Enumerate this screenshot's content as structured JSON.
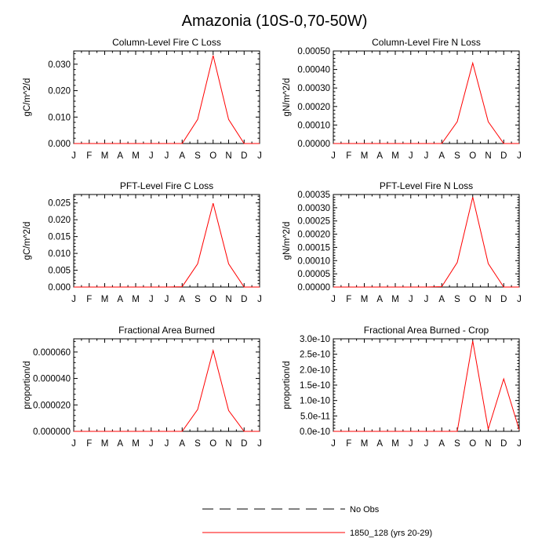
{
  "page_title": "Amazonia (10S-0,70-50W)",
  "colors": {
    "series": "#ff0000",
    "obs": "#000000"
  },
  "legend": {
    "obs_label": "No Obs",
    "model_label": "1850_128 (yrs 20-29)"
  },
  "chart_data": [
    {
      "type": "line",
      "title": "Column-Level Fire C Loss",
      "ylabel": "gC/m^2/d",
      "ylim": [
        0,
        0.035
      ],
      "ytick_values": [
        0,
        0.01,
        0.02,
        0.03
      ],
      "ytick_labels": [
        "0.000",
        "0.010",
        "0.020",
        "0.030"
      ],
      "categories": [
        "J",
        "F",
        "M",
        "A",
        "M",
        "J",
        "J",
        "A",
        "S",
        "O",
        "N",
        "D",
        "J"
      ],
      "series": [
        {
          "name": "1850_128 (yrs 20-29)",
          "values": [
            0,
            0,
            0,
            0,
            0,
            0,
            0,
            0,
            0.0091,
            0.0333,
            0.0091,
            0,
            0
          ]
        }
      ]
    },
    {
      "type": "line",
      "title": "Column-Level Fire N Loss",
      "ylabel": "gN/m^2/d",
      "ylim": [
        0,
        0.0005
      ],
      "ytick_values": [
        0,
        0.0001,
        0.0002,
        0.0003,
        0.0004,
        0.0005
      ],
      "ytick_labels": [
        "0.00000",
        "0.00010",
        "0.00020",
        "0.00030",
        "0.00040",
        "0.00050"
      ],
      "categories": [
        "J",
        "F",
        "M",
        "A",
        "M",
        "J",
        "J",
        "A",
        "S",
        "O",
        "N",
        "D",
        "J"
      ],
      "series": [
        {
          "name": "1850_128 (yrs 20-29)",
          "values": [
            0,
            0,
            0,
            0,
            0,
            0,
            0,
            0,
            0.000118,
            0.000435,
            0.000118,
            0,
            0
          ]
        }
      ]
    },
    {
      "type": "line",
      "title": "PFT-Level Fire C Loss",
      "ylabel": "gC/m^2/d",
      "ylim": [
        0,
        0.0275
      ],
      "ytick_values": [
        0,
        0.005,
        0.01,
        0.015,
        0.02,
        0.025
      ],
      "ytick_labels": [
        "0.000",
        "0.005",
        "0.010",
        "0.015",
        "0.020",
        "0.025"
      ],
      "categories": [
        "J",
        "F",
        "M",
        "A",
        "M",
        "J",
        "J",
        "A",
        "S",
        "O",
        "N",
        "D",
        "J"
      ],
      "series": [
        {
          "name": "1850_128 (yrs 20-29)",
          "values": [
            0,
            0,
            0,
            0,
            0,
            0,
            0,
            0.0001,
            0.0069,
            0.0249,
            0.0069,
            0,
            0
          ]
        }
      ]
    },
    {
      "type": "line",
      "title": "PFT-Level Fire N Loss",
      "ylabel": "gN/m^2/d",
      "ylim": [
        0,
        0.00035
      ],
      "ytick_values": [
        0,
        5e-05,
        0.0001,
        0.00015,
        0.0002,
        0.00025,
        0.0003,
        0.00035
      ],
      "ytick_labels": [
        "0.00000",
        "0.00005",
        "0.00010",
        "0.00015",
        "0.00020",
        "0.00025",
        "0.00030",
        "0.00035"
      ],
      "categories": [
        "J",
        "F",
        "M",
        "A",
        "M",
        "J",
        "J",
        "A",
        "S",
        "O",
        "N",
        "D",
        "J"
      ],
      "series": [
        {
          "name": "1850_128 (yrs 20-29)",
          "values": [
            0,
            0,
            0,
            0,
            0,
            0,
            0,
            1.5e-06,
            9.3e-05,
            0.00034,
            8.9e-05,
            0,
            0
          ]
        }
      ]
    },
    {
      "type": "line",
      "title": "Fractional Area Burned",
      "ylabel": "proportion/d",
      "ylim": [
        0,
        7e-05
      ],
      "ytick_values": [
        0,
        2e-05,
        4e-05,
        6e-05
      ],
      "ytick_labels": [
        "0.000000",
        "0.000020",
        "0.000040",
        "0.000060"
      ],
      "categories": [
        "J",
        "F",
        "M",
        "A",
        "M",
        "J",
        "J",
        "A",
        "S",
        "O",
        "N",
        "D",
        "J"
      ],
      "series": [
        {
          "name": "1850_128 (yrs 20-29)",
          "values": [
            0,
            0,
            0,
            0,
            0,
            0,
            0,
            0,
            1.65e-05,
            6.12e-05,
            1.58e-05,
            0,
            0
          ]
        }
      ]
    },
    {
      "type": "line",
      "title": "Fractional Area Burned - Crop",
      "ylabel": "proportion/d",
      "ylim": [
        0,
        3e-10
      ],
      "ytick_values": [
        0,
        5e-11,
        1e-10,
        1.5e-10,
        2e-10,
        2.5e-10,
        3e-10
      ],
      "ytick_labels": [
        "0.0e-10",
        "5.0e-11",
        "1.0e-10",
        "1.5e-10",
        "2.0e-10",
        "2.5e-10",
        "3.0e-10"
      ],
      "categories": [
        "J",
        "F",
        "M",
        "A",
        "M",
        "J",
        "J",
        "A",
        "S",
        "O",
        "N",
        "D",
        "J"
      ],
      "series": [
        {
          "name": "1850_128 (yrs 20-29)",
          "values": [
            0,
            0,
            0,
            0,
            0,
            0,
            0,
            0,
            0,
            2.93e-10,
            7e-12,
            1.7e-10,
            5e-12
          ]
        }
      ]
    }
  ]
}
